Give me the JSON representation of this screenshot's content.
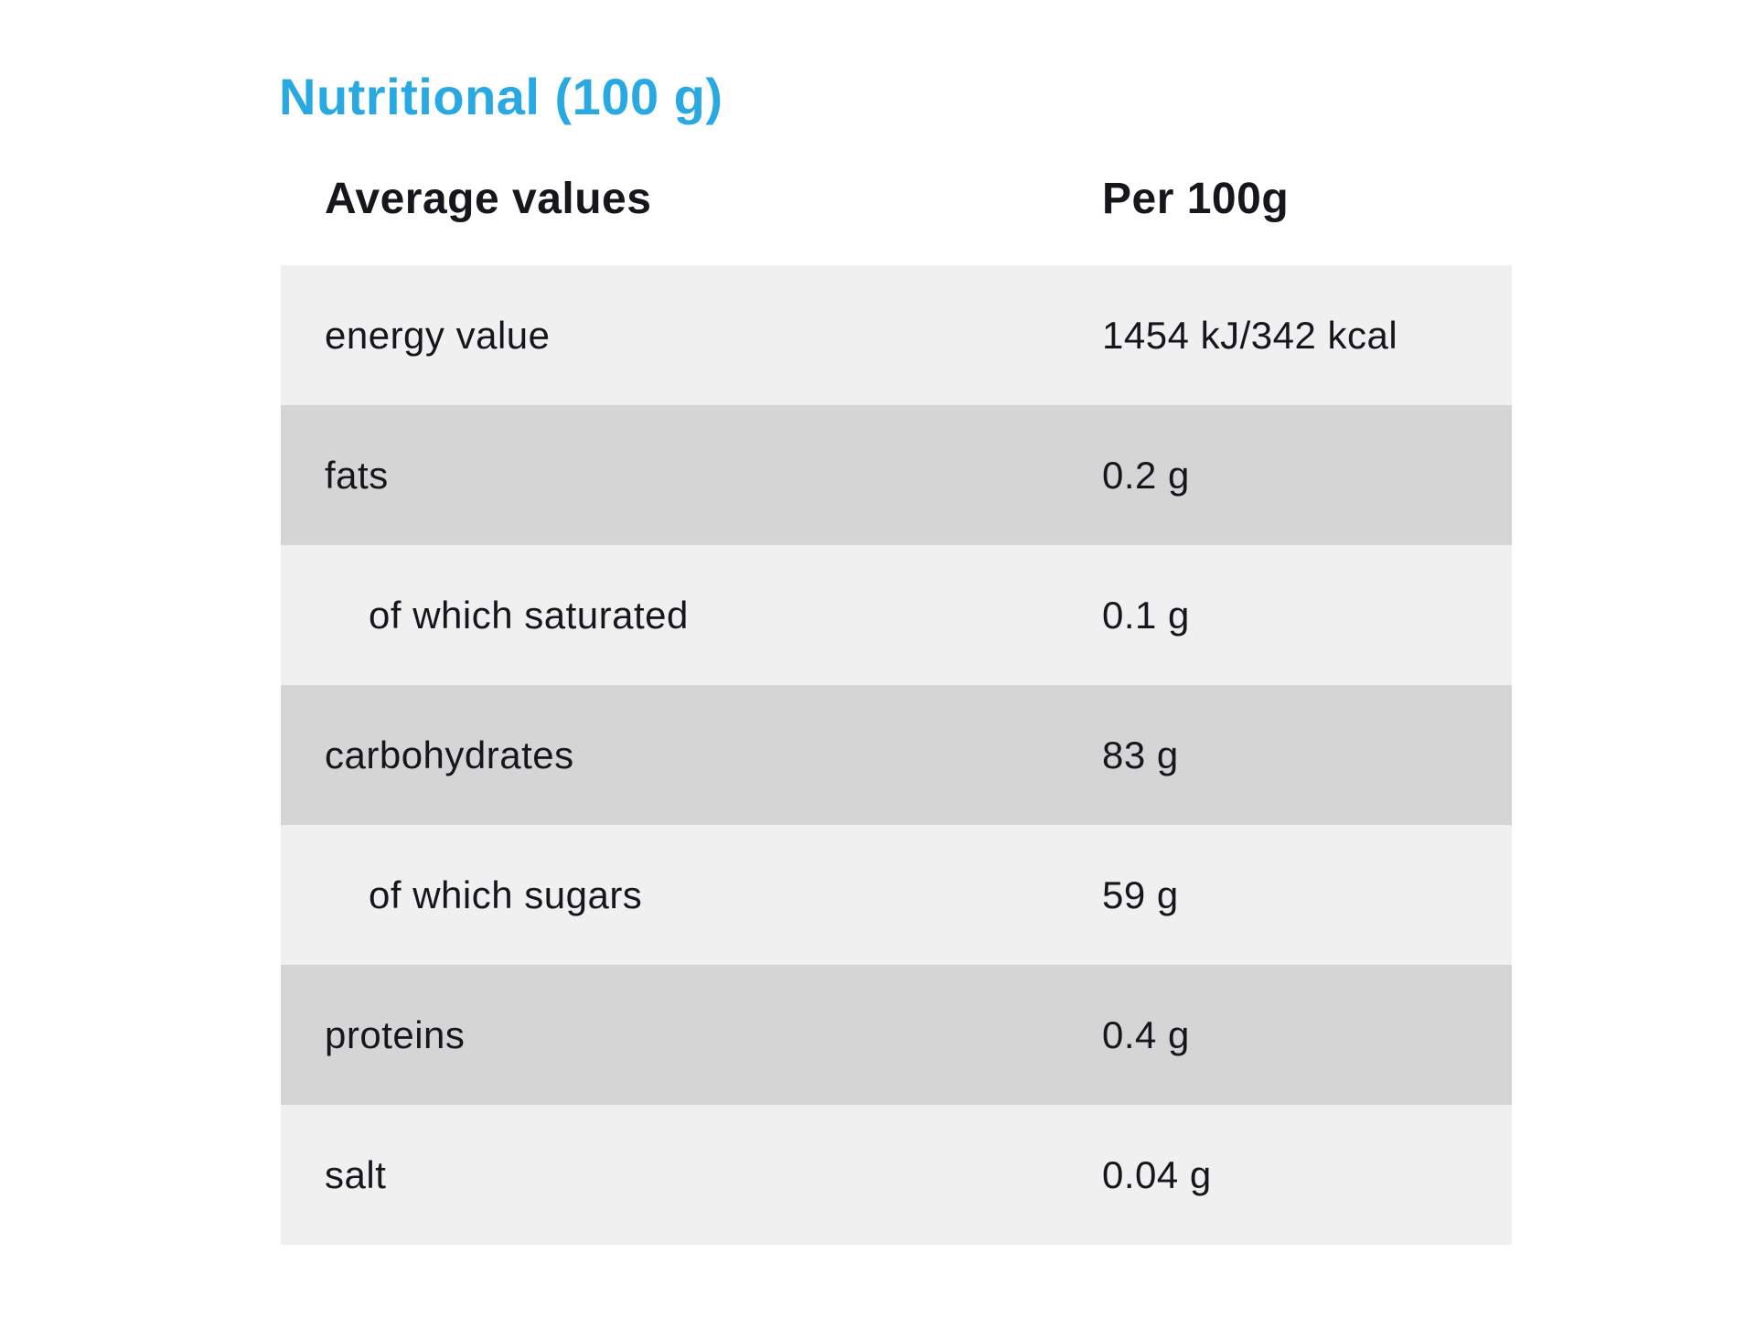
{
  "section": {
    "title": "Nutritional (100 g)"
  },
  "table": {
    "headers": {
      "label": "Average values",
      "value": "Per 100g"
    },
    "rows": [
      {
        "label": "energy value",
        "value": "1454 kJ/342 kcal",
        "indent": false
      },
      {
        "label": "fats",
        "value": "0.2 g",
        "indent": false
      },
      {
        "label": "of which saturated",
        "value": "0.1 g",
        "indent": true
      },
      {
        "label": "carbohydrates",
        "value": "83 g",
        "indent": false
      },
      {
        "label": "of which sugars",
        "value": "59 g",
        "indent": true
      },
      {
        "label": "proteins",
        "value": "0.4 g",
        "indent": false
      },
      {
        "label": "salt",
        "value": "0.04 g",
        "indent": false
      }
    ]
  },
  "colors": {
    "accent": "#29a9e1",
    "text": "#16161d",
    "row_light": "#f0f0f0",
    "row_dark": "#d5d5d5",
    "page_bg": "#ffffff"
  }
}
